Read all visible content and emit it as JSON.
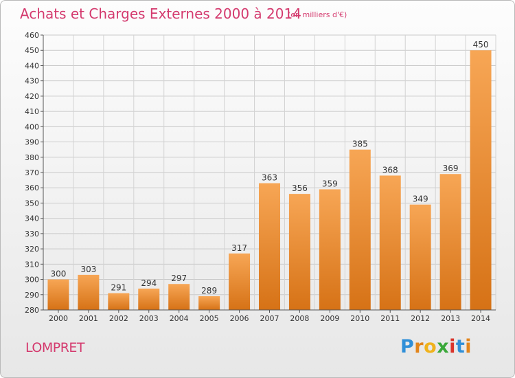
{
  "header": {
    "title": "Achats et Charges Externes 2000 à 2014",
    "unit": "(en milliers d'€)"
  },
  "footer": {
    "city": "LOMPRET",
    "brand_letters": [
      "P",
      "r",
      "o",
      "x",
      "i",
      "t",
      "i"
    ],
    "brand_colors": [
      "#2f8fd8",
      "#e2851c",
      "#f0b21c",
      "#3aa83a",
      "#d9342b",
      "#2f8fd8",
      "#e2851c"
    ]
  },
  "chart_data": {
    "type": "bar",
    "title": "Achats et Charges Externes 2000 à 2014",
    "categories": [
      "2000",
      "2001",
      "2002",
      "2003",
      "2004",
      "2005",
      "2006",
      "2007",
      "2008",
      "2009",
      "2010",
      "2011",
      "2012",
      "2013",
      "2014"
    ],
    "values": [
      300,
      303,
      291,
      294,
      297,
      289,
      317,
      363,
      356,
      359,
      385,
      368,
      349,
      369,
      450
    ],
    "ylim": [
      280,
      460
    ],
    "yticks": [
      280,
      290,
      300,
      310,
      320,
      330,
      340,
      350,
      360,
      370,
      380,
      390,
      400,
      410,
      420,
      430,
      440,
      450,
      460
    ],
    "xlabel": "",
    "ylabel": "",
    "grid": true,
    "bar_color_top": "#f7a655",
    "bar_color_bottom": "#d67216"
  }
}
